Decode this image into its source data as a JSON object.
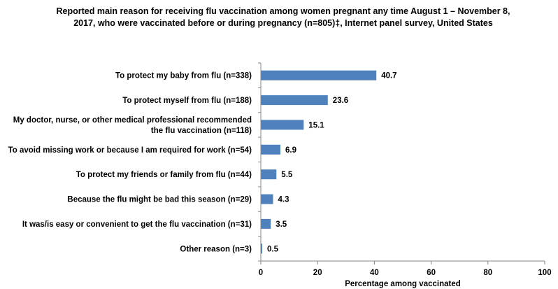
{
  "chart_data": {
    "type": "bar",
    "orientation": "horizontal",
    "title": "Reported main reason for receiving flu vaccination among women pregnant any time August 1 – November 8, 2017, who were vaccinated before or during pregnancy (n=805)‡, Internet panel survey, United States",
    "categories": [
      [
        "To protect my baby from flu (n=338)"
      ],
      [
        "To protect myself from flu (n=188)"
      ],
      [
        "My doctor, nurse, or other medical professional recommended",
        "the flu vaccination (n=118)"
      ],
      [
        "To avoid missing work or because I am required for work (n=54)"
      ],
      [
        "To protect my friends or family from flu (n=44)"
      ],
      [
        "Because the flu might be bad this season (n=29)"
      ],
      [
        "It was/is easy or convenient to get the flu vaccination (n=31)"
      ],
      [
        "Other reason (n=3)"
      ]
    ],
    "values": [
      40.7,
      23.6,
      15.1,
      6.9,
      5.5,
      4.3,
      3.5,
      0.5
    ],
    "value_labels": [
      "40.7",
      "23.6",
      "15.1",
      "6.9",
      "5.5",
      "4.3",
      "3.5",
      "0.5"
    ],
    "xlabel": "Percentage among vaccinated",
    "ylabel": "",
    "xlim": [
      0,
      100
    ],
    "xticks": [
      0,
      20,
      40,
      60,
      80,
      100
    ],
    "grid": false,
    "bar_color": "#4F81BD"
  }
}
